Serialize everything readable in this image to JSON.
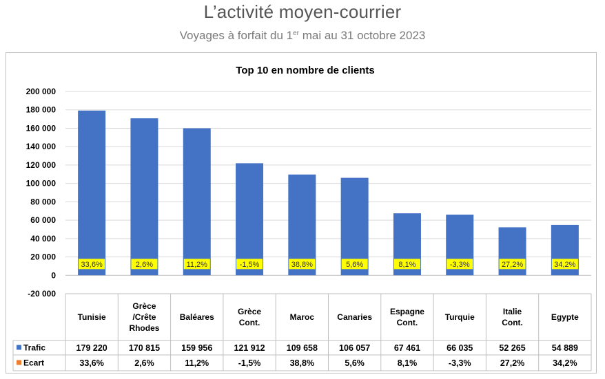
{
  "header": {
    "title": "L’activité moyen-courrier",
    "subtitle_prefix": "Voyages à forfait du 1",
    "subtitle_sup": "er",
    "subtitle_suffix": " mai au 31 octobre 2023"
  },
  "chart_data": {
    "type": "bar",
    "title": "Top 10 en nombre de clients",
    "categories": [
      [
        "Tunisie"
      ],
      [
        "Grèce",
        "/Crête",
        "Rhodes"
      ],
      [
        "Baléares"
      ],
      [
        "Grèce",
        "Cont."
      ],
      [
        "Maroc"
      ],
      [
        "Canaries"
      ],
      [
        "Espagne",
        "Cont."
      ],
      [
        "Turquie"
      ],
      [
        "Italie",
        "Cont."
      ],
      [
        "Egypte"
      ]
    ],
    "series": [
      {
        "name": "Trafic",
        "color": "#4472C4",
        "values": [
          179220,
          170815,
          159956,
          121912,
          109658,
          106057,
          67461,
          66035,
          52265,
          54889
        ],
        "labels": [
          "179 220",
          "170 815",
          "159 956",
          "121 912",
          "109 658",
          "106 057",
          "67 461",
          "66 035",
          "52 265",
          "54 889"
        ]
      },
      {
        "name": "Ecart",
        "color": "#ED7D31",
        "values": [
          0.336,
          0.026,
          0.112,
          -0.015,
          0.388,
          0.056,
          0.081,
          -0.033,
          0.272,
          0.342
        ],
        "labels": [
          "33,6%",
          "2,6%",
          "11,2%",
          "-1,5%",
          "38,8%",
          "5,6%",
          "8,1%",
          "-3,3%",
          "27,2%",
          "34,2%"
        ]
      }
    ],
    "ylim": [
      -20000,
      200000
    ],
    "y_ticks": [
      200000,
      180000,
      160000,
      140000,
      120000,
      100000,
      80000,
      60000,
      40000,
      20000,
      0,
      -20000
    ],
    "y_tick_labels": [
      "200 000",
      "180 000",
      "160 000",
      "140 000",
      "120 000",
      "100 000",
      "80 000",
      "60 000",
      "40 000",
      "20 000",
      "0",
      "-20 000"
    ],
    "data_label_color": "#FFFF00",
    "grid": true,
    "legend": "data-table"
  }
}
